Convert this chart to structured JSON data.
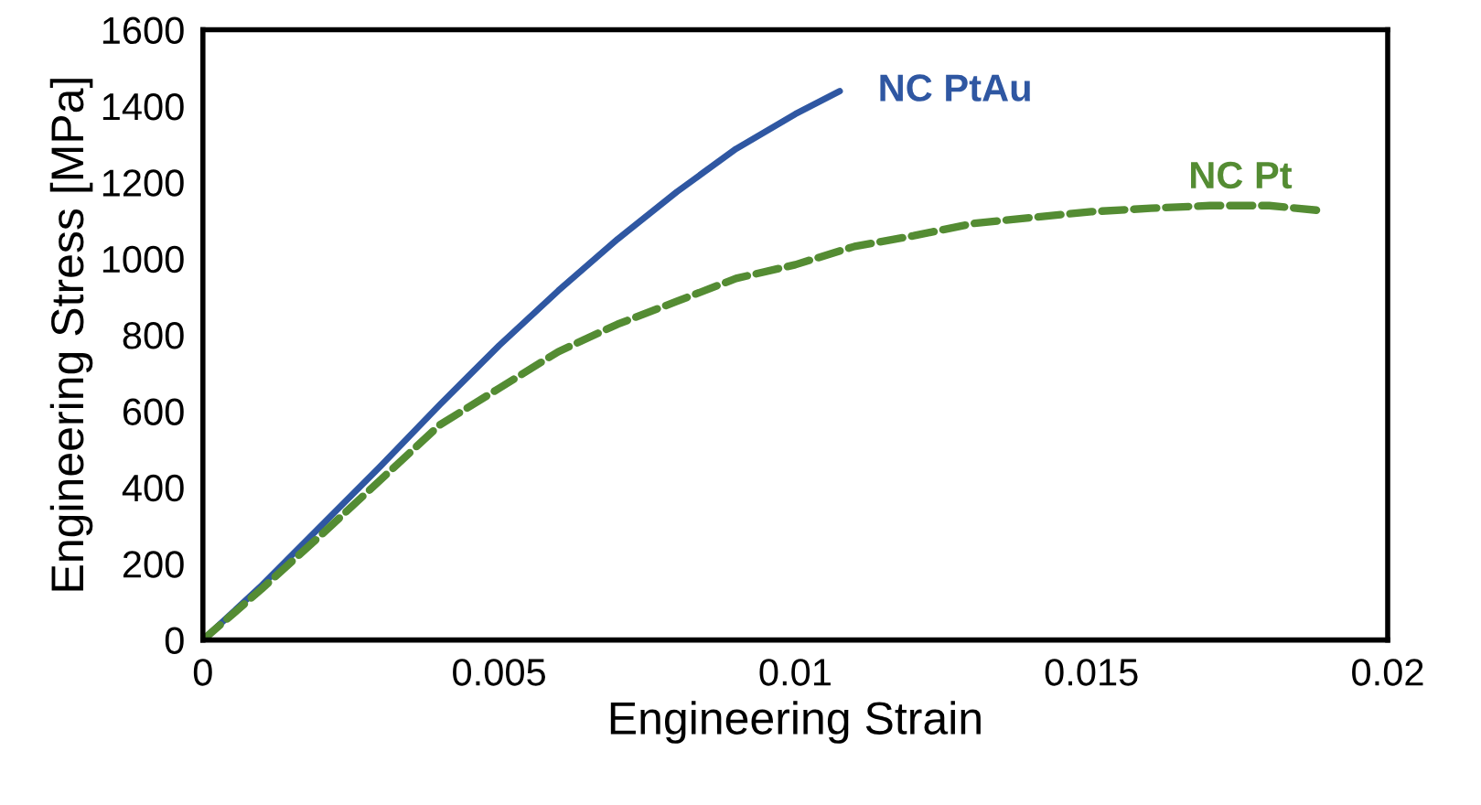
{
  "chart_data": {
    "type": "line",
    "xlabel": "Engineering Strain",
    "ylabel": "Engineering Stress [MPa]",
    "xlim": [
      0,
      0.02
    ],
    "ylim": [
      0,
      1600
    ],
    "xticks": [
      0,
      {
        "value": 0.005,
        "label": "0.005"
      },
      {
        "value": 0.01,
        "label": "0.01"
      },
      {
        "value": 0.015,
        "label": "0.015"
      },
      {
        "value": 0.02,
        "label": "0.02"
      }
    ],
    "yticks": [
      0,
      200,
      400,
      600,
      800,
      1000,
      1200,
      1400,
      1600
    ],
    "grid": false,
    "legend": false,
    "marker": "none",
    "series": [
      {
        "name": "NC PtAu",
        "color": "#2f57a2",
        "line_style": "solid",
        "x": [
          0,
          0.001,
          0.002,
          0.003,
          0.004,
          0.005,
          0.006,
          0.007,
          0.008,
          0.009,
          0.01,
          0.01075
        ],
        "values": [
          0,
          144,
          300,
          456,
          617,
          772,
          916,
          1051,
          1175,
          1288,
          1379,
          1439
        ]
      },
      {
        "name": "NC Pt",
        "color": "#548c33",
        "line_style": "dashed",
        "x": [
          0,
          0.001,
          0.002,
          0.003,
          0.004,
          0.005,
          0.006,
          0.007,
          0.008,
          0.009,
          0.01,
          0.011,
          0.012,
          0.013,
          0.014,
          0.015,
          0.016,
          0.017,
          0.018,
          0.0188
        ],
        "values": [
          0,
          135,
          276,
          420,
          564,
          660,
          756,
          828,
          888,
          948,
          984,
          1032,
          1060,
          1092,
          1108,
          1123,
          1132,
          1139,
          1139,
          1127
        ]
      }
    ]
  }
}
